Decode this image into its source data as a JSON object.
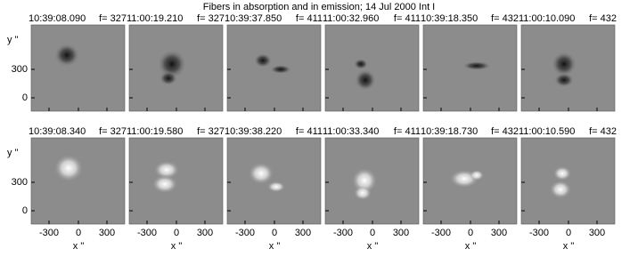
{
  "title": "Fibers in absorption and in emission; 14 Jul 2000 Int I",
  "axes": {
    "xlabel": "x \"",
    "ylabel": "y \"",
    "xticks": [
      "-300",
      "0",
      "300"
    ],
    "yticks": [
      "300",
      "0"
    ]
  },
  "rows": [
    {
      "panels": [
        {
          "time": "10:39:08.090",
          "frame": "f=  327"
        },
        {
          "time": "11:00:19.210",
          "frame": "f=  327"
        },
        {
          "time": "10:39:37.850",
          "frame": "f=  411"
        },
        {
          "time": "11:00:32.960",
          "frame": "f=  411"
        },
        {
          "time": "10:39:18.350",
          "frame": "f=  432"
        },
        {
          "time": "11:00:10.090",
          "frame": "f=  432"
        }
      ]
    },
    {
      "panels": [
        {
          "time": "10:39:08.340",
          "frame": "f=  327"
        },
        {
          "time": "11:00:19.580",
          "frame": "f=  327"
        },
        {
          "time": "10:39:38.220",
          "frame": "f=  411"
        },
        {
          "time": "11:00:33.340",
          "frame": "f=  411"
        },
        {
          "time": "10:39:18.730",
          "frame": "f=  432"
        },
        {
          "time": "11:00:10.590",
          "frame": "f=  432"
        }
      ]
    }
  ]
}
